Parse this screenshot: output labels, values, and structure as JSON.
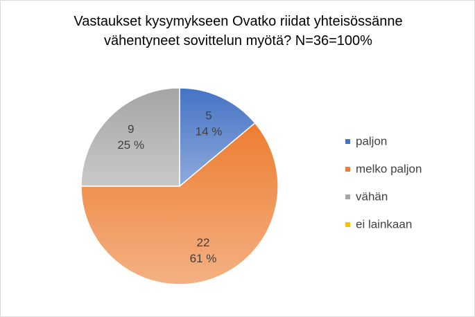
{
  "chart_data": {
    "type": "pie",
    "title": "Vastaukset kysymykseen Ovatko riidat yhteisössänne vähentyneet sovittelun myötä? N=36=100%",
    "categories": [
      "paljon",
      "melko paljon",
      "vähän",
      "ei lainkaan"
    ],
    "values": [
      5,
      22,
      9,
      0
    ],
    "percent_labels": [
      "14 %",
      "61 %",
      "25 %",
      null
    ],
    "colors": [
      "#4472c4",
      "#ed7d31",
      "#a5a5a5",
      "#ffc000"
    ],
    "legend": "right"
  }
}
